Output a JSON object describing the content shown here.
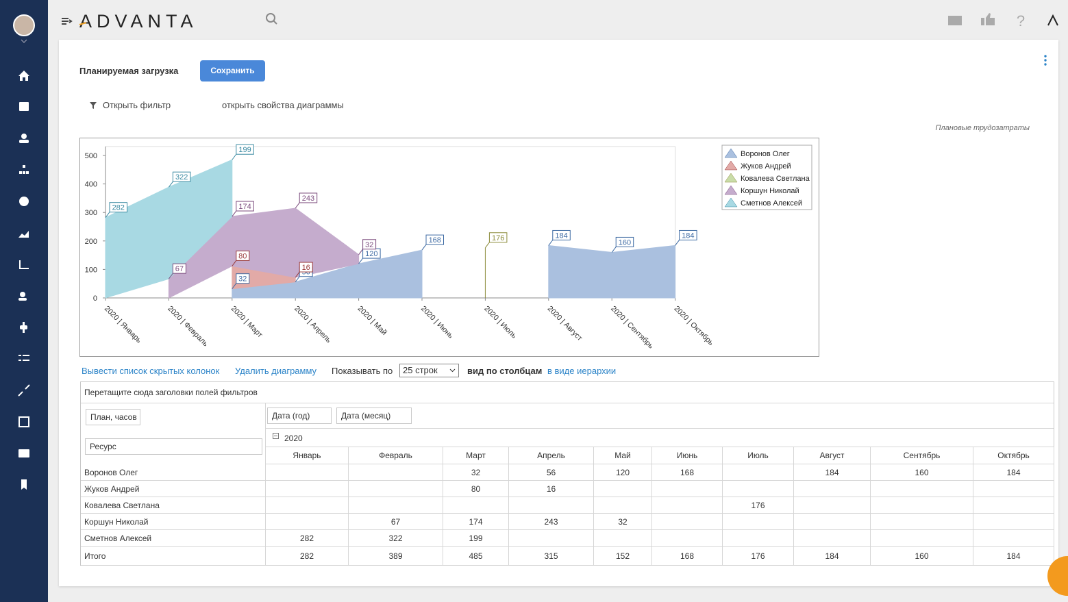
{
  "header": {
    "logo": "ADVANTA",
    "help": "?"
  },
  "toolbar": {
    "title": "Планируемая загрузка",
    "save": "Сохранить",
    "filter": "Открыть фильтр",
    "chart_props": "открыть свойства диаграммы",
    "chart_caption": "Плановые трудозатраты"
  },
  "chart_data": {
    "type": "area",
    "stacked": true,
    "categories": [
      "2020 | Январь",
      "2020 | Февраль",
      "2020 | Март",
      "2020 | Апрель",
      "2020 | Май",
      "2020 | Июнь",
      "2020 | Июль",
      "2020 | Август",
      "2020 | Сентябрь",
      "2020 | Октябрь"
    ],
    "series": [
      {
        "name": "Воронов Олег",
        "color": "#aac0df",
        "label_color": "#3d6aa3",
        "values": [
          null,
          null,
          32,
          56,
          120,
          168,
          null,
          184,
          160,
          184
        ]
      },
      {
        "name": "Жуков Андрей",
        "color": "#e2aaa7",
        "label_color": "#9b3c3c",
        "values": [
          null,
          null,
          80,
          16,
          null,
          null,
          null,
          null,
          null,
          null
        ]
      },
      {
        "name": "Ковалева Светлана",
        "color": "#c9dca8",
        "label_color": "#8a8a38",
        "values": [
          null,
          null,
          null,
          null,
          null,
          null,
          176,
          null,
          null,
          null
        ]
      },
      {
        "name": "Коршун Николай",
        "color": "#c5accd",
        "label_color": "#7a4a7c",
        "values": [
          null,
          67,
          174,
          243,
          32,
          null,
          null,
          null,
          null,
          null
        ]
      },
      {
        "name": "Сметнов Алексей",
        "color": "#a8d9e3",
        "label_color": "#3a8aa2",
        "values": [
          282,
          322,
          199,
          null,
          null,
          null,
          null,
          null,
          null,
          null
        ]
      }
    ],
    "ylim": [
      0,
      500
    ],
    "yticks": [
      0,
      100,
      200,
      300,
      400,
      500
    ],
    "grid": false,
    "legend": "upper right"
  },
  "controls": {
    "hidden_columns": "Вывести список скрытых колонок",
    "delete_chart": "Удалить диаграмму",
    "show_by": "Показывать по",
    "rows_select": "25 строк",
    "view_columns": "вид по столбцам",
    "view_hierarchy": "в виде иерархии"
  },
  "pivot": {
    "drop_hint": "Перетащите сюда заголовки полей фильтров",
    "data_field": "План, часов",
    "row_field": "Ресурс",
    "column_fields": [
      "Дата (год)",
      "Дата (месяц)"
    ],
    "year": "2020",
    "months": [
      "Январь",
      "Февраль",
      "Март",
      "Апрель",
      "Май",
      "Июнь",
      "Июль",
      "Август",
      "Сентябрь",
      "Октябрь"
    ],
    "rows": [
      {
        "name": "Воронов Олег",
        "cells": [
          null,
          null,
          32,
          56,
          120,
          168,
          null,
          184,
          160,
          184
        ]
      },
      {
        "name": "Жуков Андрей",
        "cells": [
          null,
          null,
          80,
          16,
          null,
          null,
          null,
          null,
          null,
          null
        ]
      },
      {
        "name": "Ковалева Светлана",
        "cells": [
          null,
          null,
          null,
          null,
          null,
          null,
          176,
          null,
          null,
          null
        ]
      },
      {
        "name": "Коршун Николай",
        "cells": [
          null,
          67,
          174,
          243,
          32,
          null,
          null,
          null,
          null,
          null
        ]
      },
      {
        "name": "Сметнов Алексей",
        "cells": [
          282,
          322,
          199,
          null,
          null,
          null,
          null,
          null,
          null,
          null
        ]
      }
    ],
    "total": {
      "name": "Итого",
      "cells": [
        282,
        389,
        485,
        315,
        152,
        168,
        176,
        184,
        160,
        184
      ]
    }
  }
}
